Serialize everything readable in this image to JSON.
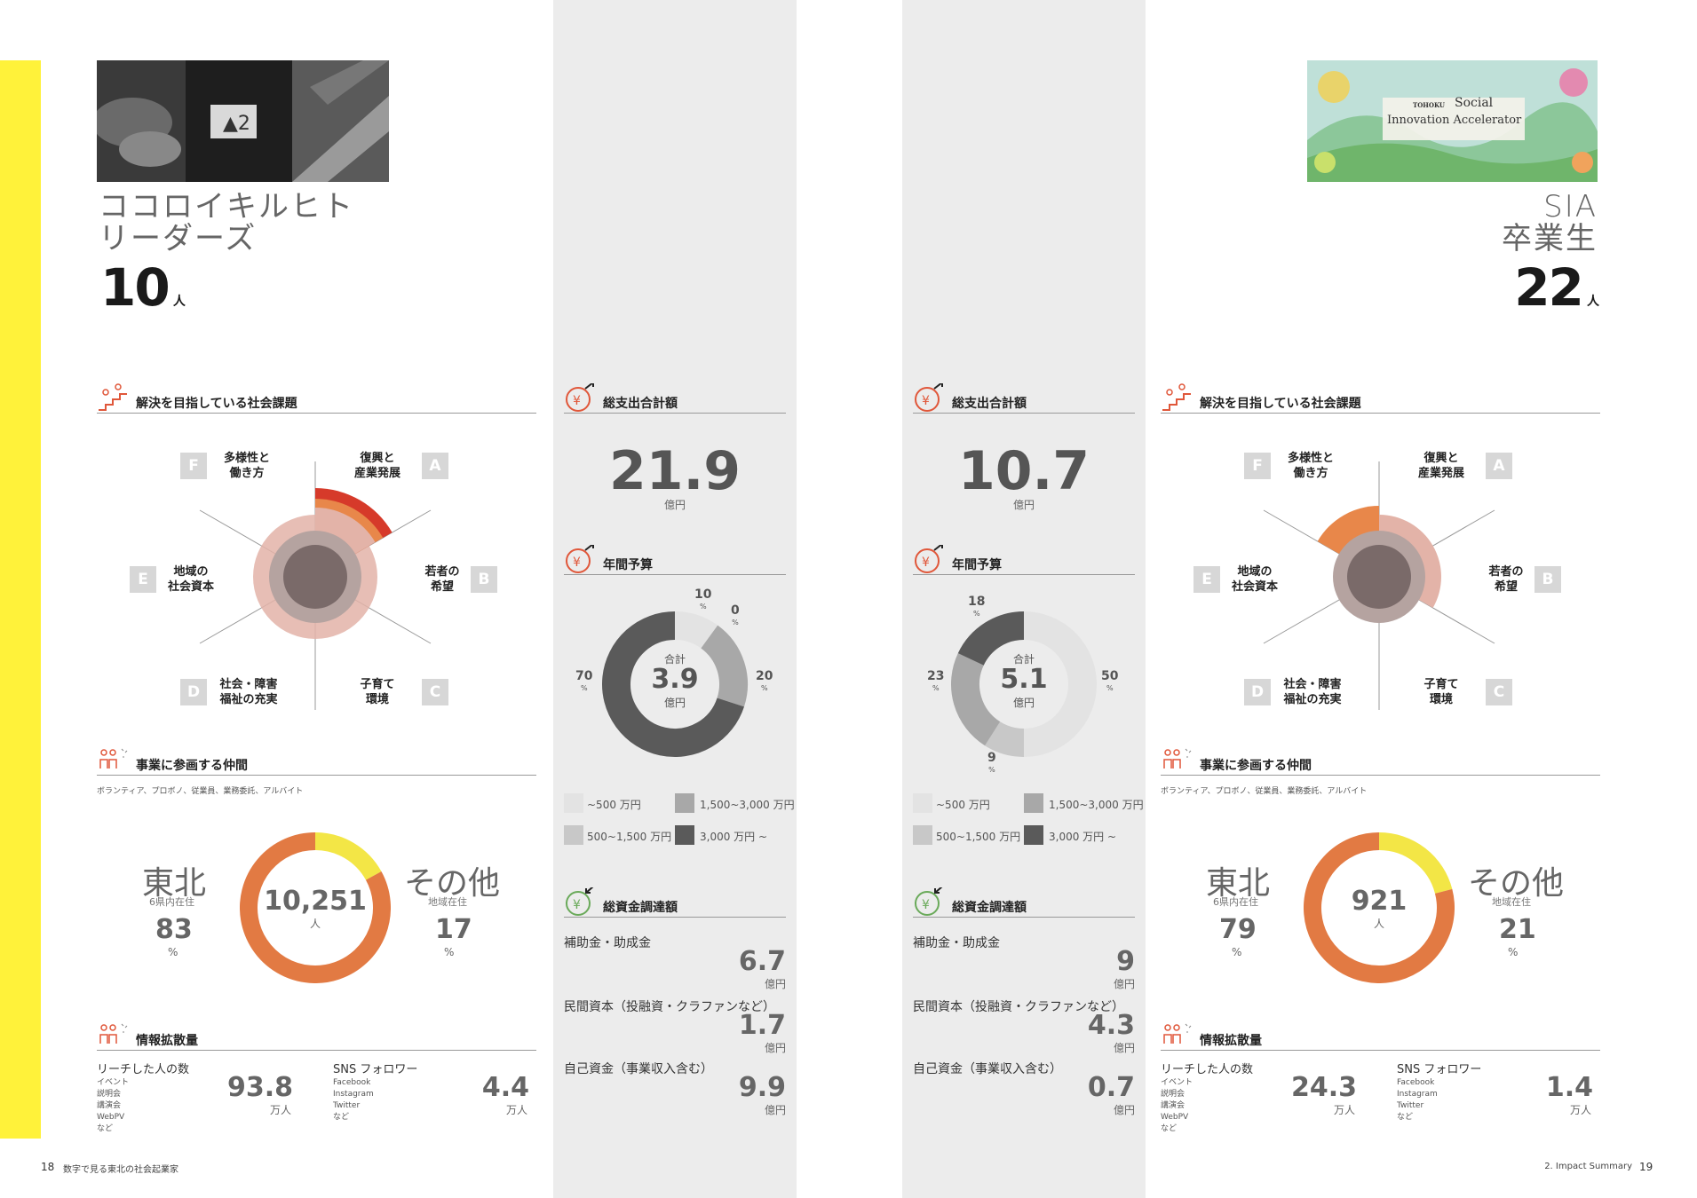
{
  "left": {
    "name_line1": "ココロイキルヒト",
    "name_line2": "リーダーズ",
    "count": "10",
    "count_unit": "人",
    "issues_title": "解決を目指している社会課題",
    "radar_labels": {
      "A": {
        "letter": "A",
        "l1": "復興と",
        "l2": "産業発展"
      },
      "B": {
        "letter": "B",
        "l1": "若者の",
        "l2": "希望"
      },
      "C": {
        "letter": "C",
        "l1": "子育て",
        "l2": "環境"
      },
      "D": {
        "letter": "D",
        "l1": "社会・障害",
        "l2": "福祉の充実"
      },
      "E": {
        "letter": "E",
        "l1": "地域の",
        "l2": "社会資本"
      },
      "F": {
        "letter": "F",
        "l1": "多様性と",
        "l2": "働き方"
      }
    },
    "members_title": "事業に参画する仲間",
    "members_sub": "ボランティア、プロボノ、従業員、業務委託、アルバイト",
    "tohoku_label": "東北",
    "tohoku_sub": "6県内在住",
    "tohoku_pct": "83",
    "center_num": "10,251",
    "center_unit": "人",
    "other_label": "その他",
    "other_sub": "地域在住",
    "other_pct": "17",
    "pct_sign": "%",
    "info_title": "情報拡散量",
    "reach_label": "リーチした人の数",
    "reach_items": [
      "イベント",
      "説明会",
      "講演会",
      "WebPV",
      "など"
    ],
    "reach_value": "93.8",
    "reach_unit": "万人",
    "sns_label": "SNS フォロワー",
    "sns_items": [
      "Facebook",
      "Instagram",
      "Twitter",
      "など"
    ],
    "sns_value": "4.4",
    "sns_unit": "万人",
    "page_no": "18",
    "page_title": "数字で見る東北の社会起業家"
  },
  "col1": {
    "total_title": "総支出合計額",
    "total_value": "21.9",
    "total_unit": "億円",
    "budget_title": "年間予算",
    "budget_center_label": "合計",
    "budget_center_value": "3.9",
    "budget_center_unit": "億円",
    "budget_pcts": {
      "p10": "10",
      "p0": "0",
      "p20": "20",
      "p70": "70"
    },
    "legend": [
      "~500 万円",
      "1,500~3,000 万円",
      "500~1,500 万円",
      "3,000 万円 ~"
    ],
    "funding_title": "総資金調達額",
    "fund1_label": "補助金・助成金",
    "fund1_value": "6.7",
    "fund2_label": "民間資本（投融資・クラファンなど）",
    "fund2_value": "1.7",
    "fund3_label": "自己資金（事業収入含む）",
    "fund3_value": "9.9",
    "fund_unit": "億円"
  },
  "col2": {
    "total_title": "総支出合計額",
    "total_value": "10.7",
    "total_unit": "億円",
    "budget_title": "年間予算",
    "budget_center_label": "合計",
    "budget_center_value": "5.1",
    "budget_center_unit": "億円",
    "budget_pcts": {
      "p18": "18",
      "p50": "50",
      "p9": "9",
      "p23": "23"
    },
    "legend": [
      "~500 万円",
      "1,500~3,000 万円",
      "500~1,500 万円",
      "3,000 万円 ~"
    ],
    "funding_title": "総資金調達額",
    "fund1_label": "補助金・助成金",
    "fund1_value": "9",
    "fund2_label": "民間資本（投融資・クラファンなど）",
    "fund2_value": "4.3",
    "fund3_label": "自己資金（事業収入含む）",
    "fund3_value": "0.7",
    "fund_unit": "億円"
  },
  "right": {
    "name_line1": "SIA",
    "name_line2": "卒業生",
    "count": "22",
    "count_unit": "人",
    "banner_small": "TOHOKU",
    "banner_l1": "Social",
    "banner_l2": "Innovation Accelerator",
    "issues_title": "解決を目指している社会課題",
    "radar_labels": {
      "A": {
        "letter": "A",
        "l1": "復興と",
        "l2": "産業発展"
      },
      "B": {
        "letter": "B",
        "l1": "若者の",
        "l2": "希望"
      },
      "C": {
        "letter": "C",
        "l1": "子育て",
        "l2": "環境"
      },
      "D": {
        "letter": "D",
        "l1": "社会・障害",
        "l2": "福祉の充実"
      },
      "E": {
        "letter": "E",
        "l1": "地域の",
        "l2": "社会資本"
      },
      "F": {
        "letter": "F",
        "l1": "多様性と",
        "l2": "働き方"
      }
    },
    "members_title": "事業に参画する仲間",
    "members_sub": "ボランティア、プロボノ、従業員、業務委託、アルバイト",
    "tohoku_label": "東北",
    "tohoku_sub": "6県内在住",
    "tohoku_pct": "79",
    "center_num": "921",
    "center_unit": "人",
    "other_label": "その他",
    "other_sub": "地域在住",
    "other_pct": "21",
    "pct_sign": "%",
    "info_title": "情報拡散量",
    "reach_label": "リーチした人の数",
    "reach_items": [
      "イベント",
      "説明会",
      "講演会",
      "WebPV",
      "など"
    ],
    "reach_value": "24.3",
    "reach_unit": "万人",
    "sns_label": "SNS フォロワー",
    "sns_items": [
      "Facebook",
      "Instagram",
      "Twitter",
      "など"
    ],
    "sns_value": "1.4",
    "sns_unit": "万人",
    "page_no": "19",
    "page_title": "2. Impact Summary"
  },
  "colors": {
    "yellow": "#fff23a",
    "red": "#d63a2a",
    "orange": "#e8874a",
    "salmon": "#e3b3a8",
    "graycol": "#ececec",
    "dark": "#5a5a5a"
  },
  "chart_data": [
    {
      "type": "pie",
      "title": "年間予算",
      "categories": [
        "~500 万円",
        "500~1,500 万円",
        "1,500~3,000 万円",
        "3,000 万円 ~"
      ],
      "values": [
        10,
        0,
        20,
        70
      ]
    },
    {
      "type": "pie",
      "title": "年間予算",
      "categories": [
        "~500 万円",
        "500~1,500 万円",
        "1,500~3,000 万円",
        "3,000 万円 ~"
      ],
      "values": [
        50,
        9,
        23,
        18
      ]
    },
    {
      "type": "pie",
      "title": "事業に参画する仲間",
      "categories": [
        "東北",
        "その他"
      ],
      "values": [
        83,
        17
      ]
    },
    {
      "type": "pie",
      "title": "事業に参画する仲間",
      "categories": [
        "東北",
        "その他"
      ],
      "values": [
        79,
        21
      ]
    }
  ]
}
